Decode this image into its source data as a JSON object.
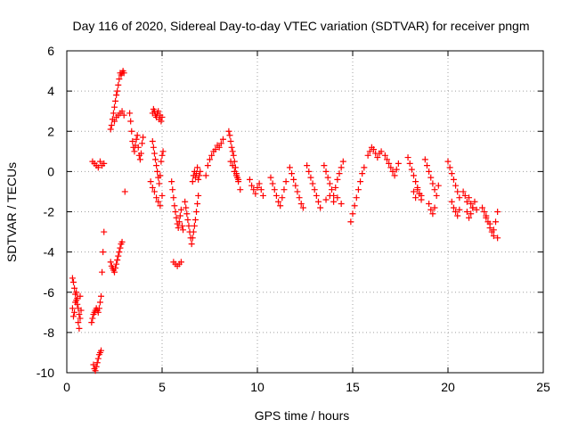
{
  "chart_data": {
    "type": "scatter",
    "title": "Day 116 of 2020, Sidereal Day-to-day VTEC variation (SDTVAR) for receiver pngm",
    "xlabel": "GPS time / hours",
    "ylabel": "SDTVAR / TECUs",
    "xlim": [
      0,
      25
    ],
    "ylim": [
      -10,
      6
    ],
    "xticks": [
      0,
      5,
      10,
      15,
      20,
      25
    ],
    "yticks": [
      -10,
      -8,
      -6,
      -4,
      -2,
      0,
      2,
      4,
      6
    ],
    "xtick_labels": [
      "0",
      "5",
      "10",
      "15",
      "20",
      "25"
    ],
    "ytick_labels": [
      "-10",
      "-8",
      "-6",
      "-4",
      "-2",
      "0",
      "2",
      "4",
      "6"
    ],
    "grid": true,
    "marker": "+",
    "color": "#ff0000",
    "series": [
      {
        "name": "SDTVAR",
        "x": [
          0.3,
          0.35,
          0.4,
          0.45,
          0.5,
          0.55,
          0.6,
          0.65,
          0.7,
          0.75,
          0.3,
          0.35,
          0.4,
          0.45,
          0.5,
          0.55,
          0.6,
          0.65,
          0.7,
          1.3,
          1.35,
          1.4,
          1.45,
          1.5,
          1.55,
          1.6,
          1.65,
          1.7,
          1.75,
          1.8,
          1.85,
          1.9,
          1.95,
          1.4,
          1.45,
          1.5,
          1.55,
          1.6,
          1.65,
          1.7,
          1.75,
          1.8,
          1.35,
          1.45,
          1.55,
          1.65,
          1.75,
          1.85,
          1.95,
          2.3,
          2.35,
          2.4,
          2.45,
          2.5,
          2.55,
          2.6,
          2.65,
          2.7,
          2.75,
          2.8,
          2.85,
          2.9,
          2.3,
          2.35,
          2.4,
          2.45,
          2.5,
          2.55,
          2.6,
          2.65,
          2.7,
          2.75,
          2.8,
          2.85,
          2.9,
          2.95,
          3.0,
          2.5,
          2.6,
          2.7,
          2.8,
          2.9,
          3.0,
          3.05,
          3.3,
          3.35,
          3.4,
          3.45,
          3.5,
          3.55,
          3.6,
          3.65,
          3.7,
          3.75,
          3.8,
          3.85,
          3.9,
          3.95,
          4.0,
          4.5,
          4.55,
          4.6,
          4.65,
          4.7,
          4.75,
          4.8,
          4.85,
          4.9,
          4.95,
          5.0,
          4.5,
          4.55,
          4.6,
          4.65,
          4.7,
          4.75,
          4.8,
          4.85,
          4.9,
          4.95,
          5.0,
          5.05,
          4.4,
          4.5,
          4.6,
          4.7,
          4.8,
          4.9,
          5.0,
          5.5,
          5.55,
          5.6,
          5.65,
          5.7,
          5.75,
          5.8,
          5.85,
          5.9,
          5.95,
          6.0,
          6.05,
          6.1,
          5.6,
          5.7,
          5.8,
          5.9,
          6.0,
          6.2,
          6.25,
          6.3,
          6.35,
          6.4,
          6.45,
          6.5,
          6.55,
          6.6,
          6.65,
          6.7,
          6.75,
          6.8,
          6.85,
          6.9,
          6.6,
          6.65,
          6.7,
          6.75,
          6.8,
          6.85,
          6.9,
          6.95,
          7.0,
          7.3,
          7.4,
          7.5,
          7.6,
          7.7,
          7.8,
          7.9,
          8.0,
          8.1,
          8.2,
          8.5,
          8.55,
          8.6,
          8.65,
          8.7,
          8.75,
          8.8,
          8.85,
          8.9,
          8.95,
          9.0,
          8.6,
          8.7,
          8.8,
          8.9,
          9.0,
          9.1,
          9.6,
          9.7,
          9.8,
          9.9,
          10.0,
          10.1,
          10.2,
          10.3,
          10.7,
          10.8,
          10.9,
          11.0,
          11.1,
          11.2,
          11.3,
          11.4,
          11.5,
          11.7,
          11.8,
          11.9,
          12.0,
          12.1,
          12.2,
          12.3,
          12.4,
          12.6,
          12.7,
          12.8,
          12.9,
          13.0,
          13.1,
          13.2,
          13.3,
          13.5,
          13.6,
          13.7,
          13.8,
          13.9,
          14.0,
          14.1,
          14.2,
          14.3,
          14.4,
          14.5,
          13.6,
          13.8,
          14.0,
          14.2,
          14.4,
          14.9,
          15.0,
          15.1,
          15.2,
          15.3,
          15.4,
          15.5,
          15.6,
          15.8,
          15.9,
          16.0,
          16.1,
          16.2,
          16.3,
          16.4,
          16.5,
          16.7,
          16.8,
          16.9,
          17.0,
          17.1,
          17.2,
          17.3,
          17.4,
          17.9,
          18.0,
          18.1,
          18.2,
          18.3,
          18.4,
          18.5,
          18.6,
          18.2,
          18.3,
          18.4,
          18.5,
          18.6,
          18.8,
          18.9,
          19.0,
          19.1,
          19.2,
          19.3,
          19.4,
          19.5,
          19.0,
          19.1,
          19.2,
          19.3,
          20.0,
          20.1,
          20.2,
          20.3,
          20.4,
          20.5,
          20.6,
          20.2,
          20.3,
          20.4,
          20.5,
          20.6,
          20.8,
          20.9,
          21.0,
          21.1,
          21.2,
          21.3,
          21.4,
          21.5,
          21.0,
          21.1,
          21.2,
          21.3,
          21.8,
          21.9,
          22.0,
          22.1,
          22.2,
          22.3,
          22.4,
          22.5,
          22.6,
          22.0,
          22.2,
          22.4,
          22.6
        ],
        "y": [
          -6.8,
          -7.2,
          -7.0,
          -6.5,
          -6.0,
          -6.3,
          -6.8,
          -7.1,
          -7.3,
          -6.9,
          -5.3,
          -5.5,
          -5.8,
          -6.1,
          -6.4,
          -6.6,
          -7.5,
          -7.8,
          -6.2,
          -7.5,
          -7.3,
          -7.1,
          -7.0,
          -6.9,
          -6.8,
          -6.9,
          -7.0,
          -6.8,
          -6.5,
          -6.2,
          -5.0,
          -4.0,
          -3.0,
          -9.6,
          -9.8,
          -9.9,
          -9.7,
          -9.5,
          -9.3,
          -9.1,
          -9.0,
          -8.9,
          0.5,
          0.4,
          0.3,
          0.2,
          0.5,
          0.3,
          0.4,
          -4.5,
          -4.7,
          -4.8,
          -4.9,
          -5.0,
          -4.8,
          -4.6,
          -4.4,
          -4.2,
          -4.0,
          -3.8,
          -3.6,
          -3.5,
          2.1,
          2.3,
          2.6,
          2.9,
          3.2,
          3.5,
          3.8,
          4.0,
          4.3,
          4.6,
          4.9,
          4.8,
          4.9,
          5.0,
          4.9,
          2.5,
          2.7,
          2.8,
          2.9,
          3.0,
          2.8,
          -1.0,
          2.9,
          2.5,
          2.0,
          1.5,
          1.2,
          1.0,
          1.3,
          1.6,
          1.8,
          1.2,
          0.8,
          0.6,
          0.9,
          1.4,
          1.7,
          2.9,
          3.1,
          3.0,
          2.8,
          2.7,
          2.9,
          3.0,
          2.6,
          2.8,
          2.5,
          2.7,
          1.5,
          1.2,
          0.9,
          0.6,
          0.3,
          0.0,
          -0.3,
          -0.6,
          -0.2,
          0.5,
          0.8,
          1.0,
          -0.5,
          -0.8,
          -1.0,
          -1.3,
          -1.5,
          -1.7,
          -1.2,
          -0.5,
          -0.9,
          -1.3,
          -1.7,
          -2.0,
          -2.3,
          -2.6,
          -2.8,
          -2.5,
          -2.2,
          -1.9,
          -2.7,
          -2.9,
          -4.5,
          -4.6,
          -4.7,
          -4.6,
          -4.5,
          -1.5,
          -1.8,
          -2.1,
          -2.4,
          -2.7,
          -3.0,
          -3.3,
          -3.6,
          -3.3,
          -3.0,
          -2.7,
          -2.4,
          -2.0,
          -1.6,
          -1.2,
          -0.5,
          -0.2,
          0.0,
          -0.3,
          -0.1,
          0.2,
          -0.4,
          -0.2,
          0.0,
          -0.2,
          0.3,
          0.6,
          0.8,
          1.0,
          1.1,
          1.3,
          1.2,
          1.4,
          1.6,
          2.0,
          1.8,
          1.5,
          1.2,
          1.0,
          0.8,
          0.5,
          0.2,
          -0.1,
          -0.3,
          -0.5,
          0.5,
          0.3,
          0.0,
          -0.2,
          -0.4,
          -0.9,
          -0.4,
          -0.7,
          -0.9,
          -1.1,
          -0.8,
          -0.6,
          -0.9,
          -1.2,
          -0.3,
          -0.6,
          -0.9,
          -1.2,
          -1.5,
          -1.7,
          -1.3,
          -0.9,
          -0.5,
          0.2,
          -0.1,
          -0.4,
          -0.7,
          -1.0,
          -1.3,
          -1.6,
          -1.8,
          0.3,
          0.0,
          -0.3,
          -0.6,
          -0.9,
          -1.2,
          -1.5,
          -1.8,
          0.3,
          0.0,
          -0.3,
          -0.6,
          -0.9,
          -1.2,
          -0.8,
          -0.4,
          -0.1,
          0.2,
          0.5,
          -1.4,
          -1.2,
          -1.5,
          -1.3,
          -1.6,
          -2.5,
          -2.1,
          -1.7,
          -1.3,
          -0.9,
          -0.5,
          -0.1,
          0.2,
          0.8,
          1.0,
          1.2,
          1.1,
          0.9,
          0.7,
          0.9,
          1.0,
          0.8,
          0.6,
          0.4,
          0.2,
          0.0,
          -0.2,
          0.1,
          0.4,
          0.7,
          0.4,
          0.1,
          -0.2,
          -0.5,
          -0.8,
          -1.1,
          -1.4,
          -1.0,
          -1.3,
          -0.9,
          -1.1,
          -1.2,
          0.6,
          0.3,
          0.0,
          -0.3,
          -0.6,
          -0.9,
          -1.2,
          -0.7,
          -1.6,
          -1.9,
          -2.1,
          -1.8,
          0.5,
          0.2,
          -0.1,
          -0.4,
          -0.7,
          -1.0,
          -1.3,
          -1.5,
          -1.8,
          -2.0,
          -2.2,
          -1.9,
          -1.0,
          -1.2,
          -1.5,
          -1.3,
          -1.6,
          -1.8,
          -1.5,
          -1.9,
          -2.0,
          -2.3,
          -2.1,
          -1.8,
          -1.8,
          -2.0,
          -2.2,
          -2.5,
          -2.8,
          -3.0,
          -3.2,
          -2.5,
          -2.0,
          -2.3,
          -2.6,
          -2.9,
          -3.3
        ]
      }
    ]
  }
}
